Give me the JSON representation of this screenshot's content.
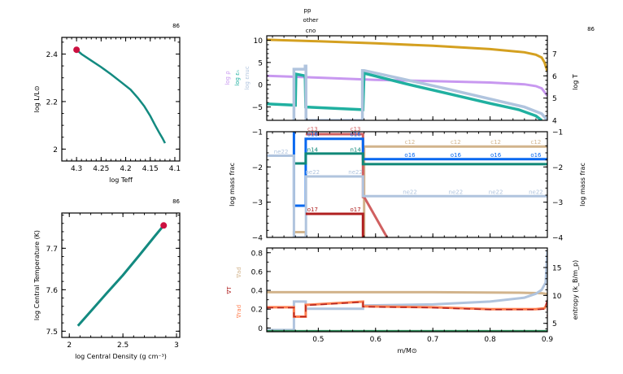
{
  "colors": {
    "track": "#138a80",
    "marker": "#cc1040",
    "logT": "#d4a020",
    "logRho": "#c898f0",
    "logEps": "#20b0a0",
    "logEpsNuc": "#b0c4de",
    "c12": "#d2b48c",
    "c13": "#d06060",
    "o16": "#0868f0",
    "n14": "#108878",
    "ne22": "#b0c4de",
    "o17": "#b02020",
    "grad_ad": "#d2b48c",
    "grad_T": "#b02020",
    "grad_rad": "#ff7f50",
    "entropy": "#b0c4de",
    "mixing": "#2e8b57"
  },
  "chart_data": [
    {
      "id": "hr",
      "type": "line",
      "title": "",
      "corner_label": "86",
      "xlabel": "log Teff",
      "ylabel": "log L/L⊙",
      "xlim": [
        4.33,
        4.09
      ],
      "ylim": [
        1.95,
        2.47
      ],
      "xticks": [
        4.3,
        4.25,
        4.2,
        4.15,
        4.1
      ],
      "xtick_labels": [
        "4.3",
        "4.25",
        "4.2",
        "4.15",
        "4.1"
      ],
      "yticks": [
        2.0,
        2.2,
        2.4
      ],
      "ytick_labels": [
        "2",
        "2.2",
        "2.4"
      ],
      "x": [
        4.3,
        4.29,
        4.27,
        4.25,
        4.23,
        4.21,
        4.19,
        4.175,
        4.162,
        4.15,
        4.14,
        4.132,
        4.125,
        4.12
      ],
      "y": [
        2.418,
        2.4,
        2.372,
        2.345,
        2.315,
        2.283,
        2.25,
        2.215,
        2.18,
        2.14,
        2.1,
        2.07,
        2.045,
        2.025
      ],
      "current_point": {
        "x": 4.3,
        "y": 2.418
      }
    },
    {
      "id": "central",
      "type": "line",
      "corner_label": "86",
      "xlabel": "log Central Density (g cm⁻³)",
      "ylabel": "log Central Temperature (K)",
      "xlim": [
        1.93,
        3.03
      ],
      "ylim": [
        7.485,
        7.785
      ],
      "xticks": [
        2.0,
        2.5,
        3.0
      ],
      "xtick_labels": [
        "2",
        "2.5",
        "3"
      ],
      "yticks": [
        7.5,
        7.6,
        7.7
      ],
      "ytick_labels": [
        "7.5",
        "7.6",
        "7.7"
      ],
      "x": [
        2.08,
        2.2,
        2.35,
        2.5,
        2.65,
        2.8,
        2.88
      ],
      "y": [
        7.513,
        7.548,
        7.592,
        7.635,
        7.682,
        7.73,
        7.755
      ],
      "current_point": {
        "x": 2.88,
        "y": 7.755
      }
    },
    {
      "id": "profile-top",
      "type": "line",
      "corner_label": "86",
      "top_labels": [
        "pp",
        "other",
        "cno"
      ],
      "left_ylabels": [
        "log ρ",
        "log εₙ",
        "log εnuc"
      ],
      "left_ylabel_colors": [
        "#c898f0",
        "#20b0a0",
        "#b0c4de"
      ],
      "right_ylabel": "log T",
      "xlim": [
        0.41,
        0.9
      ],
      "ylim_left": [
        -8,
        11
      ],
      "ylim_right": [
        4,
        7.8
      ],
      "yticks_left": [
        -5,
        0,
        5,
        10
      ],
      "ytick_labels_left": [
        "−5",
        "0",
        "5",
        "10"
      ],
      "yticks_right": [
        4,
        5,
        6,
        7
      ],
      "ytick_labels_right": [
        "4",
        "5",
        "6",
        "7"
      ],
      "series": [
        {
          "name": "log T",
          "axis": "right",
          "color_key": "logT",
          "x": [
            0.41,
            0.5,
            0.6,
            0.7,
            0.8,
            0.86,
            0.88,
            0.89,
            0.895,
            0.9
          ],
          "y": [
            7.62,
            7.55,
            7.46,
            7.35,
            7.2,
            7.06,
            6.95,
            6.82,
            6.6,
            6.2
          ]
        },
        {
          "name": "log rho",
          "axis": "left",
          "color_key": "logRho",
          "x": [
            0.41,
            0.5,
            0.6,
            0.7,
            0.8,
            0.86,
            0.88,
            0.89,
            0.9
          ],
          "y": [
            2.0,
            1.6,
            1.1,
            0.8,
            0.5,
            0.1,
            -0.3,
            -0.8,
            -2.5
          ]
        },
        {
          "name": "log eps",
          "axis": "left",
          "color_key": "logEps",
          "x": [
            0.41,
            0.46,
            0.461,
            0.477,
            0.478,
            0.578,
            0.58,
            0.65,
            0.72,
            0.8,
            0.85,
            0.88,
            0.89
          ],
          "y": [
            -4.3,
            -4.6,
            2.4,
            2.0,
            -5.0,
            -5.6,
            2.6,
            0.3,
            -1.8,
            -4.2,
            -5.6,
            -7.0,
            -8.0
          ]
        },
        {
          "name": "log eps_nuc",
          "axis": "left",
          "color_key": "logEpsNuc",
          "x": [
            0.4575,
            0.4575,
            0.46,
            0.475,
            0.477,
            0.477,
            0.4785,
            0.4785,
            0.577,
            0.577,
            0.58,
            0.65,
            0.72,
            0.8,
            0.86,
            0.89,
            0.9
          ],
          "y": [
            -8,
            3.5,
            3.5,
            3.5,
            3.5,
            4.2,
            4.2,
            -8,
            -8,
            3.2,
            3.2,
            1.2,
            -0.8,
            -3.2,
            -5.0,
            -6.5,
            -8
          ]
        }
      ]
    },
    {
      "id": "profile-mid",
      "type": "line",
      "ylabel": "log mass frac",
      "right_ylabel": "log mass frac",
      "xlim": [
        0.41,
        0.9
      ],
      "ylim": [
        -4,
        -1
      ],
      "yticks": [
        -4,
        -3,
        -2,
        -1
      ],
      "ytick_labels": [
        "−4",
        "−3",
        "−2",
        "−1"
      ],
      "series": [
        {
          "name": "c12",
          "color_key": "c12",
          "x": [
            0.41,
            0.4575,
            0.4575,
            0.478,
            0.478,
            0.58,
            0.58,
            0.9
          ],
          "y": [
            -4.5,
            -4.5,
            -3.85,
            -3.85,
            -4.5,
            -4.5,
            -1.42,
            -1.42
          ]
        },
        {
          "name": "c13",
          "color_key": "c13",
          "x": [
            0.478,
            0.578,
            0.578,
            0.58,
            0.62
          ],
          "y": [
            -1.07,
            -1.07,
            -2.85,
            -2.85,
            -4.0
          ]
        },
        {
          "name": "o16",
          "color_key": "o16",
          "x": [
            0.4575,
            0.4575,
            0.4575,
            0.478,
            0.478,
            0.578,
            0.578,
            0.9
          ],
          "y": [
            -1.0,
            -3.1,
            -3.1,
            -3.1,
            -1.2,
            -1.2,
            -1.78,
            -1.78
          ]
        },
        {
          "name": "n14",
          "color_key": "n14",
          "x": [
            0.4575,
            0.478,
            0.478,
            0.578,
            0.578,
            0.9
          ],
          "y": [
            -1.9,
            -1.9,
            -1.62,
            -1.62,
            -1.92,
            -1.92
          ]
        },
        {
          "name": "ne22",
          "color_key": "ne22",
          "x": [
            0.41,
            0.4575,
            0.4575,
            0.4785,
            0.4785,
            0.578,
            0.578,
            0.9
          ],
          "y": [
            -1.68,
            -1.68,
            -4.0,
            -4.0,
            -2.27,
            -2.27,
            -2.83,
            -2.83
          ]
        },
        {
          "name": "o17",
          "color_key": "o17",
          "x": [
            0.478,
            0.578,
            0.578
          ],
          "y": [
            -3.33,
            -3.33,
            -4.0
          ]
        }
      ],
      "annotations": [
        {
          "text": "ne22",
          "x": 0.435,
          "y": -1.62,
          "color_key": "ne22"
        },
        {
          "text": "c13",
          "x": 0.49,
          "y": -0.98,
          "color_key": "c13"
        },
        {
          "text": "o16",
          "x": 0.49,
          "y": -1.13,
          "color_key": "o16"
        },
        {
          "text": "n14",
          "x": 0.49,
          "y": -1.56,
          "color_key": "n14"
        },
        {
          "text": "ne22",
          "x": 0.49,
          "y": -2.2,
          "color_key": "ne22"
        },
        {
          "text": "o17",
          "x": 0.49,
          "y": -3.26,
          "color_key": "o17"
        },
        {
          "text": "c13",
          "x": 0.565,
          "y": -0.98,
          "color_key": "c13"
        },
        {
          "text": "o16",
          "x": 0.565,
          "y": -1.13,
          "color_key": "o16"
        },
        {
          "text": "n14",
          "x": 0.565,
          "y": -1.56,
          "color_key": "n14"
        },
        {
          "text": "ne22",
          "x": 0.565,
          "y": -2.2,
          "color_key": "ne22"
        },
        {
          "text": "o17",
          "x": 0.565,
          "y": -3.26,
          "color_key": "o17"
        },
        {
          "text": "c12",
          "x": 0.66,
          "y": -1.35,
          "color_key": "c12"
        },
        {
          "text": "o16",
          "x": 0.66,
          "y": -1.72,
          "color_key": "o16"
        },
        {
          "text": "ne22",
          "x": 0.66,
          "y": -2.76,
          "color_key": "ne22"
        },
        {
          "text": "c12",
          "x": 0.74,
          "y": -1.35,
          "color_key": "c12"
        },
        {
          "text": "o16",
          "x": 0.74,
          "y": -1.72,
          "color_key": "o16"
        },
        {
          "text": "ne22",
          "x": 0.74,
          "y": -2.76,
          "color_key": "ne22"
        },
        {
          "text": "c12",
          "x": 0.81,
          "y": -1.35,
          "color_key": "c12"
        },
        {
          "text": "o16",
          "x": 0.81,
          "y": -1.72,
          "color_key": "o16"
        },
        {
          "text": "ne22",
          "x": 0.81,
          "y": -2.76,
          "color_key": "ne22"
        },
        {
          "text": "c12",
          "x": 0.88,
          "y": -1.35,
          "color_key": "c12"
        },
        {
          "text": "o16",
          "x": 0.88,
          "y": -1.72,
          "color_key": "o16"
        },
        {
          "text": "ne22",
          "x": 0.88,
          "y": -2.76,
          "color_key": "ne22"
        }
      ]
    },
    {
      "id": "profile-bot",
      "type": "line",
      "xlabel": "m/M⊙",
      "left_ylabels": [
        "∇ad",
        "∇T",
        "∇rad"
      ],
      "left_ylabel_colors": [
        "#d2b48c",
        "#b02020",
        "#ff7f50"
      ],
      "right_ylabel": "entropy (k_B/m_p)",
      "xlim": [
        0.41,
        0.9
      ],
      "ylim_left": [
        -0.04,
        0.85
      ],
      "ylim_right": [
        3.5,
        18.5
      ],
      "xticks": [
        0.5,
        0.6,
        0.7,
        0.8,
        0.9
      ],
      "xtick_labels": [
        "0.5",
        "0.6",
        "0.7",
        "0.8",
        "0.9"
      ],
      "yticks_left": [
        0,
        0.2,
        0.4,
        0.6,
        0.8
      ],
      "ytick_labels_left": [
        "0",
        "0.2",
        "0.4",
        "0.6",
        "0.8"
      ],
      "yticks_right": [
        5,
        10,
        15
      ],
      "ytick_labels_right": [
        "5",
        "10",
        "15"
      ],
      "series": [
        {
          "name": "grad_ad",
          "axis": "left",
          "color_key": "grad_ad",
          "x": [
            0.41,
            0.7,
            0.85,
            0.89,
            0.9
          ],
          "y": [
            0.38,
            0.38,
            0.375,
            0.37,
            0.36
          ]
        },
        {
          "name": "entropy",
          "axis": "right",
          "color_key": "entropy",
          "x": [
            0.41,
            0.4575,
            0.4575,
            0.478,
            0.478,
            0.578,
            0.578,
            0.7,
            0.8,
            0.86,
            0.88,
            0.89,
            0.897,
            0.9
          ],
          "y": [
            3.8,
            3.8,
            8.9,
            8.9,
            7.6,
            7.6,
            8.2,
            8.4,
            8.9,
            9.6,
            10.3,
            11.0,
            12.3,
            18.0
          ]
        },
        {
          "name": "grad_rad",
          "axis": "left",
          "color_key": "grad_rad",
          "x": [
            0.41,
            0.4575,
            0.4575,
            0.478,
            0.478,
            0.578,
            0.578,
            0.7,
            0.8,
            0.88,
            0.895,
            0.9
          ],
          "y": [
            0.22,
            0.22,
            0.12,
            0.12,
            0.245,
            0.28,
            0.23,
            0.22,
            0.2,
            0.2,
            0.21,
            0.26
          ]
        },
        {
          "name": "grad_T",
          "axis": "left",
          "color_key": "grad_T",
          "x": [
            0.41,
            0.4575,
            0.4575,
            0.478,
            0.478,
            0.578,
            0.578,
            0.7,
            0.8,
            0.88,
            0.895,
            0.9,
            0.9
          ],
          "y": [
            0.215,
            0.215,
            0.12,
            0.12,
            0.24,
            0.275,
            0.225,
            0.215,
            0.195,
            0.195,
            0.2,
            0.3,
            0.12
          ]
        },
        {
          "name": "mixing",
          "axis": "left",
          "color_key": "mixing",
          "x": [
            0.41,
            0.9
          ],
          "y": [
            -0.035,
            -0.035
          ]
        }
      ]
    }
  ]
}
